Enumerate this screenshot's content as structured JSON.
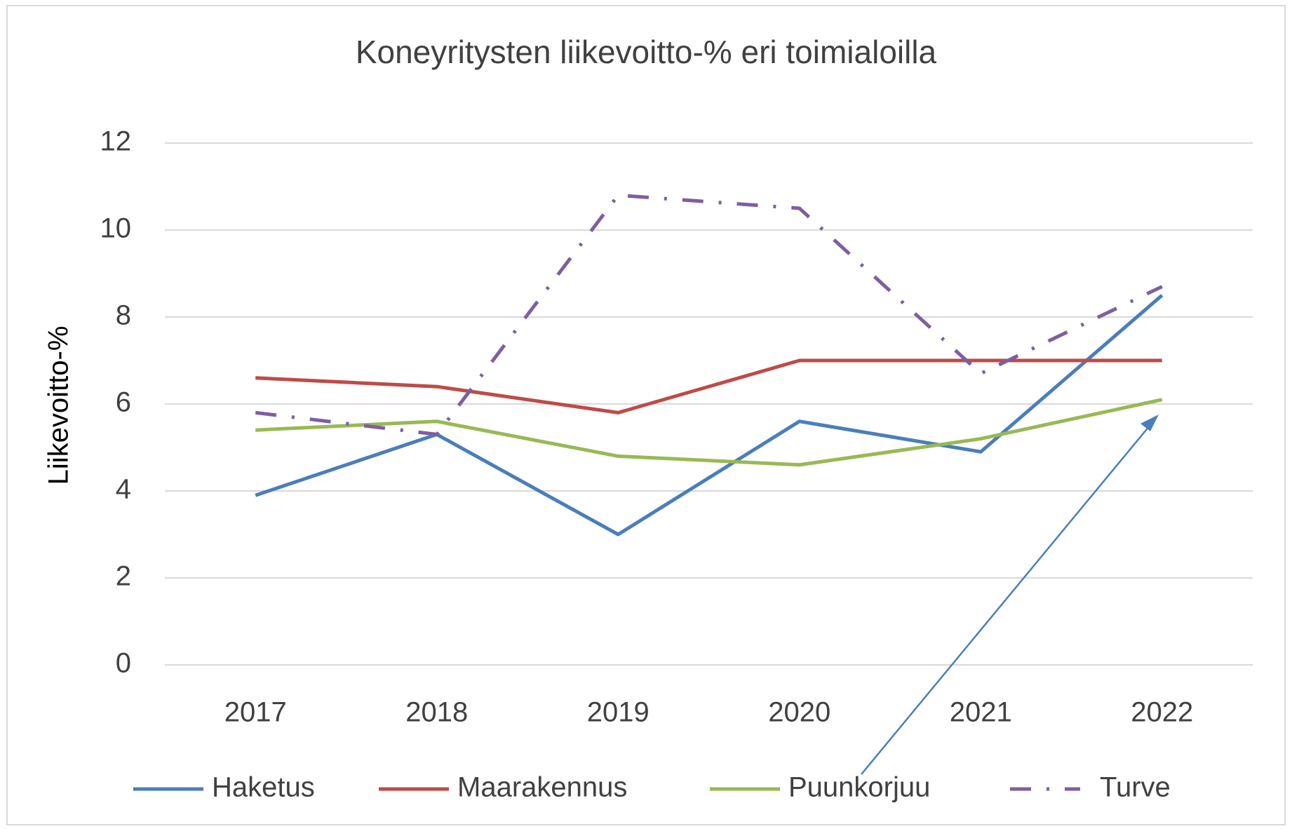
{
  "chart_data": {
    "type": "line",
    "title": "Koneyritysten liikevoitto-% eri toimialoilla",
    "y_label": "Liikevoitto-%",
    "categories": [
      "2017",
      "2018",
      "2019",
      "2020",
      "2021",
      "2022"
    ],
    "series": [
      {
        "name": "Haketus",
        "color": "#4a7ebb",
        "values": [
          3.9,
          5.3,
          3.0,
          5.6,
          4.9,
          8.5
        ]
      },
      {
        "name": "Maarakennus",
        "color": "#be4b48",
        "values": [
          6.6,
          6.4,
          5.8,
          7.0,
          7.0,
          7.0
        ]
      },
      {
        "name": "Puunkorjuu",
        "color": "#98b954",
        "values": [
          5.4,
          5.6,
          4.8,
          4.6,
          5.2,
          6.1
        ]
      },
      {
        "name": "Turve",
        "color": "#7d5fa0",
        "style": "dash-dot",
        "values": [
          5.8,
          5.3,
          10.8,
          10.5,
          6.7,
          8.7
        ]
      }
    ],
    "ylim": [
      0,
      12
    ],
    "yticks": [
      0,
      2,
      4,
      6,
      8,
      10,
      12
    ],
    "grid": true,
    "legend": "bottom"
  }
}
